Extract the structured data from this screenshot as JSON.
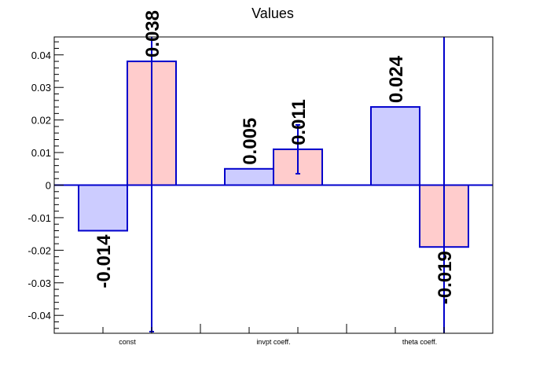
{
  "chart_data": {
    "type": "bar",
    "title": "Values",
    "categories": [
      "const",
      "invpt coeff.",
      "theta coeff."
    ],
    "series": [
      {
        "values": [
          -0.014,
          0.005,
          0.024
        ],
        "errors": [
          null,
          null,
          null
        ],
        "labels": [
          "-0.014",
          "0.005",
          "0.024"
        ],
        "fill": "#ccccff"
      },
      {
        "values": [
          0.038,
          0.011,
          -0.019
        ],
        "errors": [
          0.083,
          0.0075,
          0.066
        ],
        "labels": [
          "0.038",
          "0.011",
          "-0.019"
        ],
        "fill": "#ffcccc"
      }
    ],
    "bar_stroke": "#0000cc",
    "ylim": [
      -0.0455,
      0.0455
    ],
    "yticks": [
      -0.04,
      -0.03,
      -0.02,
      -0.01,
      0,
      0.01,
      0.02,
      0.03,
      0.04
    ],
    "ytick_labels": [
      "-0.04",
      "-0.03",
      "-0.02",
      "-0.01",
      "0",
      "0.01",
      "0.02",
      "0.03",
      "0.04"
    ],
    "grid": false,
    "xlabel": "",
    "ylabel": ""
  }
}
